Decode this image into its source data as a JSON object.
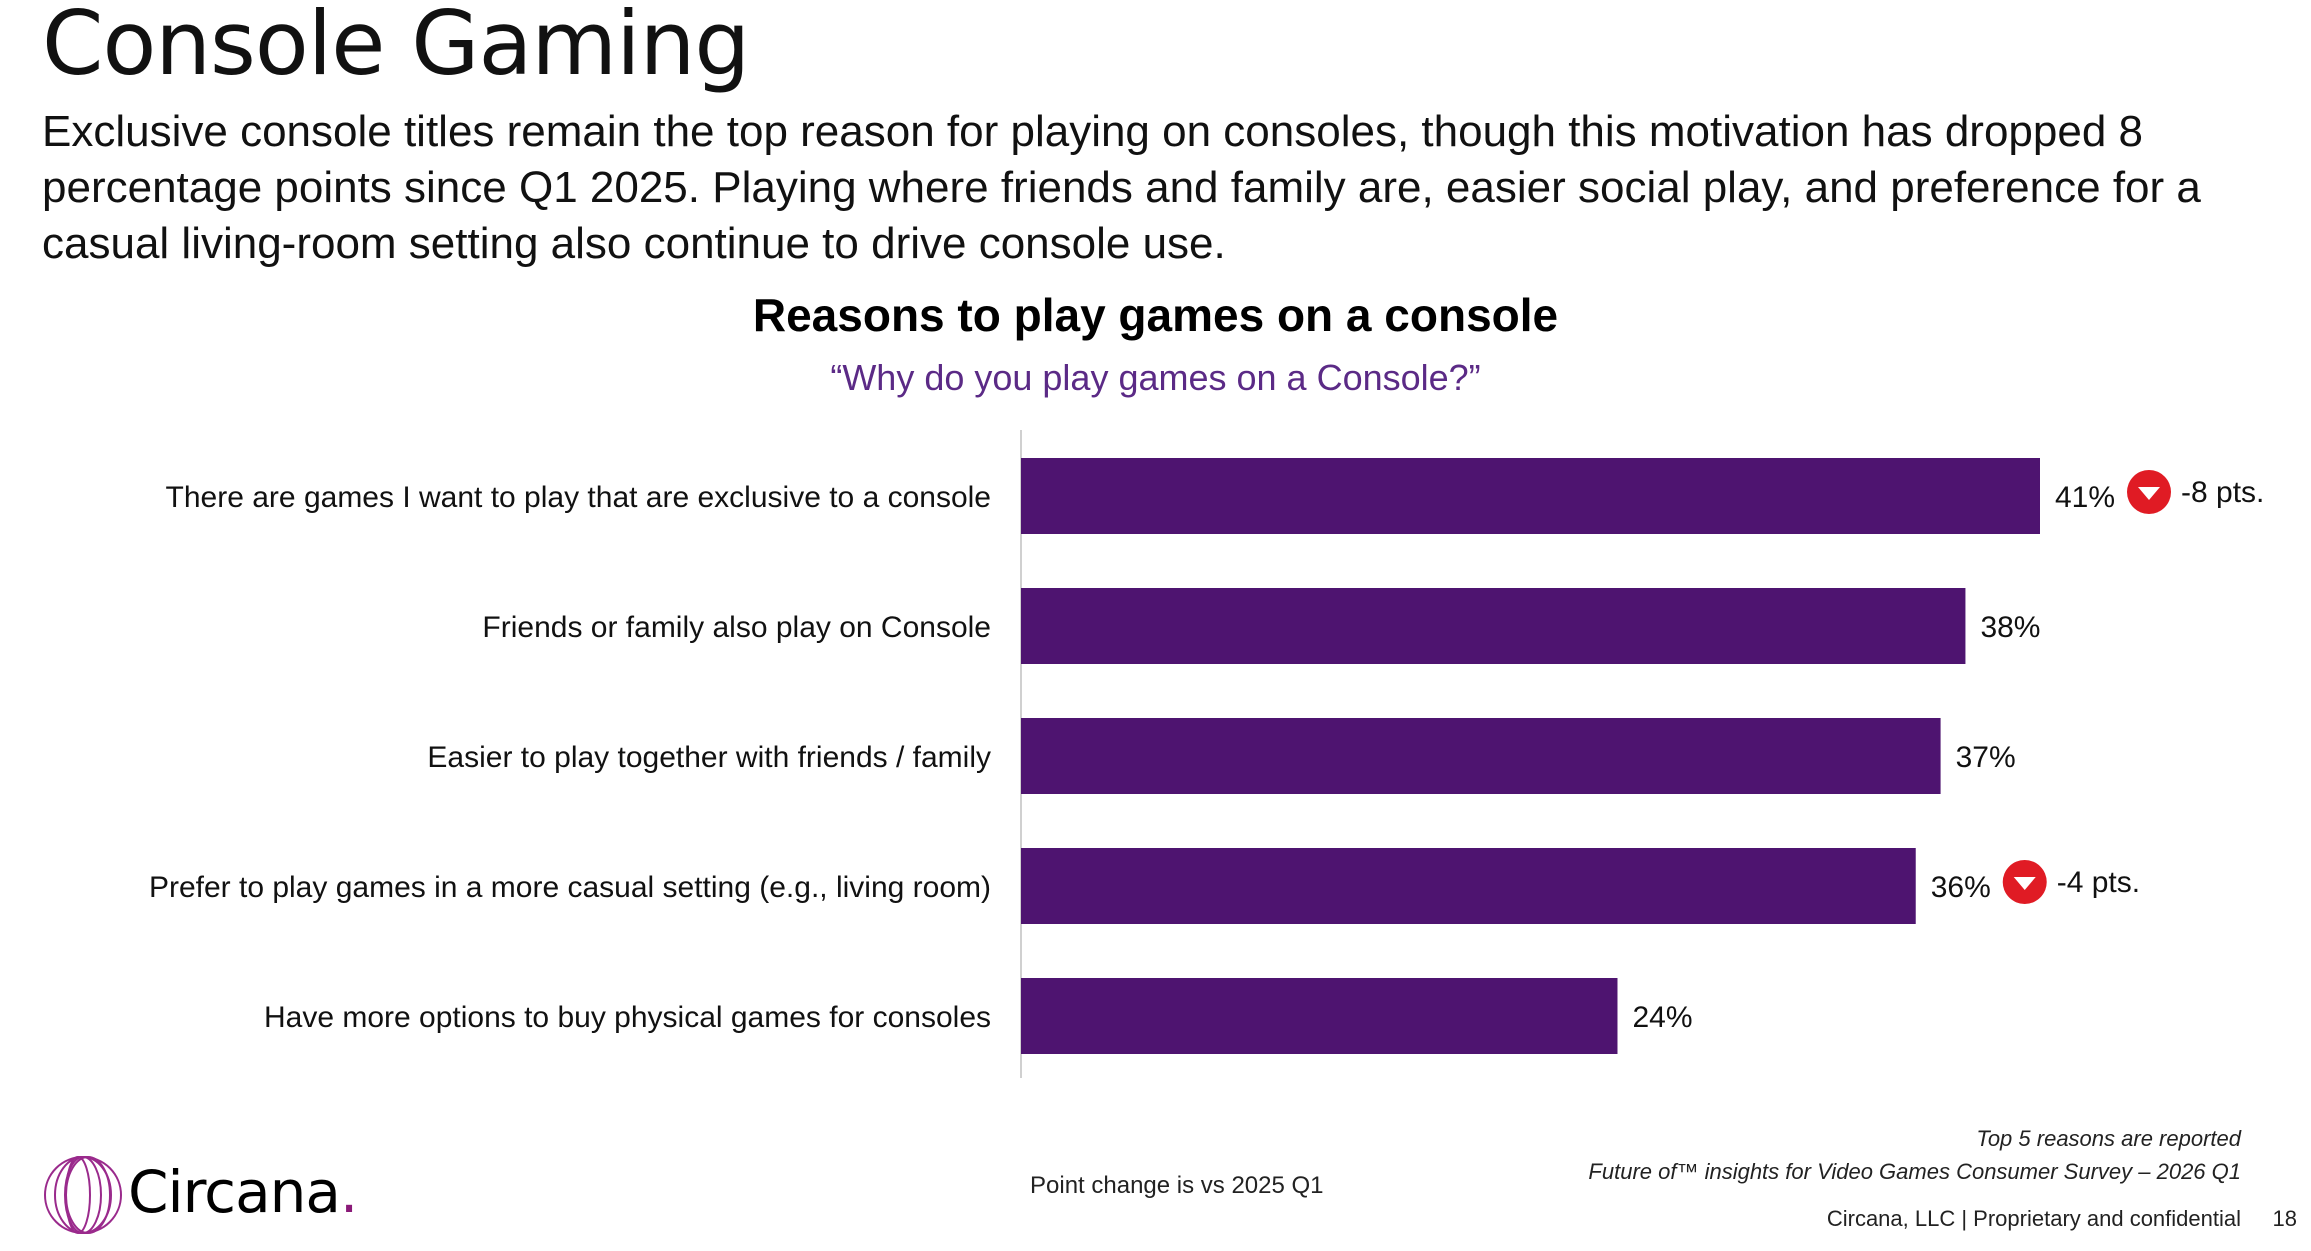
{
  "page": {
    "title": "Console Gaming",
    "intro": "Exclusive console titles remain the top reason for playing on consoles, though this motivation has dropped 8 percentage points since Q1 2025. Playing where friends and family are, easier social play, and preference for a casual living-room setting also continue to drive console use."
  },
  "chart_data": {
    "type": "bar",
    "orientation": "horizontal",
    "title": "Reasons to play games on a console",
    "subtitle": "“Why do you play games on a Console?”",
    "categories": [
      "There are games I want to play that are exclusive to a console",
      "Friends or family also play on Console",
      "Easier to play together with friends / family",
      "Prefer to play games in a more casual setting (e.g., living room)",
      "Have more options to buy physical games for consoles"
    ],
    "values": [
      41,
      38,
      37,
      36,
      24
    ],
    "value_labels": [
      "41%",
      "38%",
      "37%",
      "36%",
      "24%"
    ],
    "changes": [
      "-8 pts.",
      "",
      "",
      "-4 pts.",
      ""
    ],
    "xlim": [
      0,
      50
    ],
    "grid": false,
    "legend": "none",
    "bar_color": "#4e1470",
    "change_icon_color": "#e01b24"
  },
  "notes": {
    "point_change": "Point change is vs 2025 Q1",
    "top5": "Top 5 reasons are reported",
    "source": "Future of™ insights for Video Games Consumer Survey – 2026 Q1"
  },
  "footer": {
    "confidential": "Circana, LLC |  Proprietary and confidential",
    "page_number": "18",
    "logo_text": "Circana",
    "logo_dot": "."
  }
}
